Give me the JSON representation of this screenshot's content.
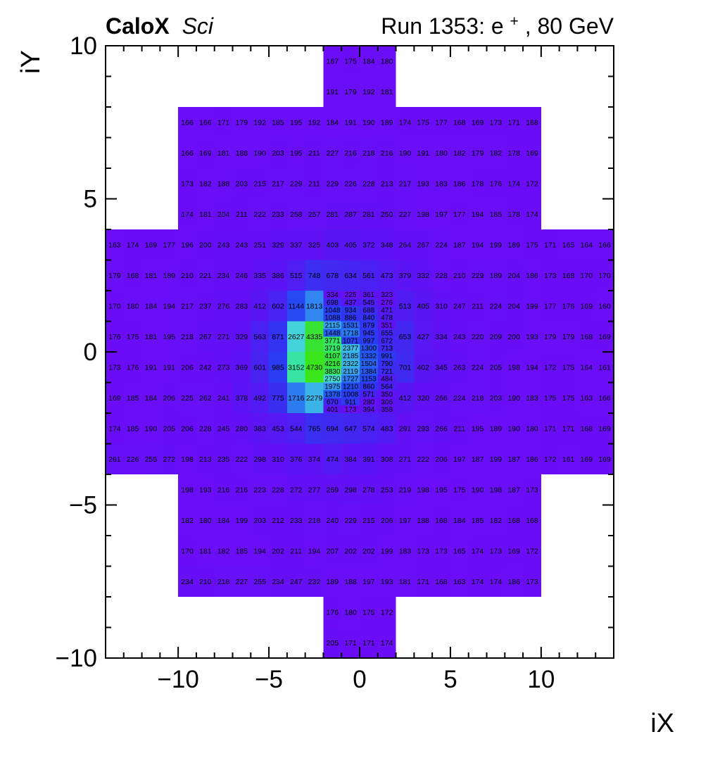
{
  "header": {
    "brand": "CaloX",
    "brand_suffix": "Sci",
    "run_prefix": "Run 1353: e",
    "run_sup": "+",
    "run_suffix": ", 80 GeV"
  },
  "chart_data": {
    "type": "heatmap",
    "title": "CaloX Sci",
    "subtitle": "Run 1353: e+, 80 GeV",
    "xlabel": "iX",
    "ylabel": "iY",
    "xlim": [
      -14,
      14
    ],
    "ylim": [
      -10,
      10
    ],
    "xticks": [
      -10,
      -5,
      0,
      5,
      10
    ],
    "yticks": [
      -10,
      -5,
      0,
      5,
      10
    ],
    "minor_tick_step": 1,
    "grid": false,
    "legend": "none",
    "cell_text_color": "#000000",
    "palette": [
      [
        160,
        "#6B0DF6"
      ],
      [
        350,
        "#5F12F4"
      ],
      [
        450,
        "#5618F3"
      ],
      [
        550,
        "#4C1FF2"
      ],
      [
        650,
        "#4426F1"
      ],
      [
        800,
        "#3730F0"
      ],
      [
        1000,
        "#2A3CF2"
      ],
      [
        1200,
        "#234CF2"
      ],
      [
        1500,
        "#2663F0"
      ],
      [
        1800,
        "#3084F0"
      ],
      [
        2100,
        "#37A2EC"
      ],
      [
        2400,
        "#3CBEE4"
      ],
      [
        2700,
        "#46D8D8"
      ],
      [
        3000,
        "#3AE2B4"
      ],
      [
        3300,
        "#34E68E"
      ],
      [
        3700,
        "#36E668"
      ],
      [
        4100,
        "#35DF40"
      ],
      [
        4730,
        "#3AE61A"
      ]
    ],
    "coarse_rows": [
      {
        "y": 9.5,
        "x0": -2,
        "v": [
          167,
          175,
          184,
          180
        ]
      },
      {
        "y": 8.5,
        "x0": -2,
        "v": [
          191,
          179,
          192,
          181
        ]
      },
      {
        "y": 7.5,
        "x0": -10,
        "v": [
          166,
          166,
          171,
          179,
          192,
          185,
          195,
          192,
          184,
          191,
          190,
          189,
          174,
          175,
          177,
          168,
          169,
          173,
          171,
          168
        ]
      },
      {
        "y": 6.5,
        "x0": -10,
        "v": [
          166,
          169,
          181,
          188,
          190,
          203,
          195,
          211,
          227,
          216,
          218,
          216,
          190,
          191,
          180,
          182,
          179,
          182,
          178,
          169
        ]
      },
      {
        "y": 5.5,
        "x0": -10,
        "v": [
          173,
          182,
          188,
          203,
          215,
          217,
          229,
          211,
          229,
          226,
          228,
          213,
          217,
          193,
          183,
          186,
          178,
          176,
          174,
          172
        ]
      },
      {
        "y": 4.5,
        "x0": -10,
        "v": [
          174,
          181,
          204,
          211,
          222,
          233,
          258,
          257,
          281,
          287,
          281,
          250,
          227,
          198,
          197,
          177,
          194,
          185,
          178,
          174
        ]
      },
      {
        "y": 3.5,
        "x0": -14,
        "v": [
          163,
          174,
          169,
          177,
          196,
          200,
          243,
          243,
          251,
          329,
          337,
          325,
          403,
          405,
          372,
          348,
          264,
          267,
          224,
          187,
          194,
          199,
          189,
          175,
          171,
          165,
          164,
          166
        ]
      },
      {
        "y": 2.5,
        "x0": -14,
        "v": [
          179,
          168,
          181,
          189,
          210,
          221,
          234,
          246,
          335,
          386,
          515,
          748,
          678,
          634,
          561,
          473,
          379,
          332,
          228,
          210,
          229,
          189,
          204,
          186,
          173,
          168,
          170,
          170
        ]
      },
      {
        "y": 1.5,
        "x0": -14,
        "v": [
          170,
          180,
          184,
          194,
          217,
          237,
          276,
          283,
          412,
          602,
          1144,
          1813
        ]
      },
      {
        "y": 1.5,
        "x0": 2,
        "v": [
          513,
          405,
          310,
          247,
          211,
          224,
          204,
          199,
          177,
          176,
          169,
          160
        ]
      },
      {
        "y": 0.5,
        "x0": -14,
        "v": [
          176,
          175,
          181,
          195,
          218,
          267,
          271,
          329,
          563,
          871,
          2627,
          4335
        ]
      },
      {
        "y": 0.5,
        "x0": 2,
        "v": [
          653,
          427,
          334,
          243,
          220,
          209,
          200,
          193,
          179,
          179,
          168,
          169
        ]
      },
      {
        "y": -0.5,
        "x0": -14,
        "v": [
          173,
          176,
          191,
          191,
          206,
          242,
          273,
          369,
          601,
          985,
          3152,
          4730
        ]
      },
      {
        "y": -0.5,
        "x0": 2,
        "v": [
          701,
          402,
          345,
          263,
          224,
          205,
          198,
          194,
          172,
          175,
          164,
          161
        ]
      },
      {
        "y": -1.5,
        "x0": -14,
        "v": [
          169,
          185,
          184,
          206,
          225,
          262,
          241,
          378,
          492,
          775,
          1716,
          2279
        ]
      },
      {
        "y": -1.5,
        "x0": 2,
        "v": [
          412,
          320,
          266,
          224,
          218,
          203,
          190,
          183,
          175,
          175,
          163,
          166
        ]
      },
      {
        "y": -2.5,
        "x0": -14,
        "v": [
          174,
          185,
          190,
          205,
          206,
          228,
          245,
          280,
          383,
          453,
          544,
          765,
          694,
          647,
          574,
          483,
          291,
          293,
          266,
          211,
          195,
          189,
          190,
          180,
          171,
          171,
          168,
          169
        ]
      },
      {
        "y": -3.5,
        "x0": -14,
        "v": [
          261,
          226,
          255,
          272,
          198,
          213,
          235,
          222,
          298,
          310,
          376,
          374,
          474,
          384,
          391,
          308,
          271,
          222,
          206,
          197,
          187,
          199,
          187,
          186,
          172,
          161,
          169,
          169
        ]
      },
      {
        "y": -4.5,
        "x0": -10,
        "v": [
          198,
          193,
          216,
          216,
          223,
          228,
          272,
          277,
          269,
          298,
          278,
          253,
          219,
          198,
          195,
          175,
          190,
          198,
          187,
          173
        ]
      },
      {
        "y": -5.5,
        "x0": -10,
        "v": [
          182,
          180,
          184,
          199,
          203,
          212,
          233,
          218,
          240,
          229,
          215,
          206,
          197,
          188,
          168,
          184,
          185,
          182,
          168,
          168
        ]
      },
      {
        "y": -6.5,
        "x0": -10,
        "v": [
          170,
          181,
          182,
          185,
          194,
          202,
          211,
          194,
          207,
          202,
          202,
          199,
          183,
          173,
          173,
          165,
          174,
          173,
          169,
          172
        ]
      },
      {
        "y": -7.5,
        "x0": -10,
        "v": [
          234,
          210,
          218,
          227,
          255,
          234,
          247,
          232,
          189,
          188,
          197,
          193,
          181,
          171,
          168,
          163,
          174,
          174,
          186,
          173
        ]
      },
      {
        "y": -8.5,
        "x0": -2,
        "v": [
          176,
          180,
          175,
          172
        ]
      },
      {
        "y": -9.5,
        "x0": -2,
        "v": [
          205,
          171,
          171,
          174
        ]
      }
    ],
    "fine_block": {
      "x0": -2,
      "y_top": 2,
      "cell_w": 1,
      "cell_h": 0.25,
      "rows": [
        [
          334,
          225,
          361,
          323
        ],
        [
          698,
          437,
          545,
          276
        ],
        [
          1048,
          934,
          688,
          471
        ],
        [
          1088,
          886,
          840,
          478
        ],
        [
          2115,
          1531,
          879,
          351
        ],
        [
          1448,
          1718,
          945,
          655
        ],
        [
          3771,
          1071,
          997,
          672
        ],
        [
          3719,
          2377,
          1300,
          713
        ],
        [
          4107,
          2185,
          1332,
          991
        ],
        [
          4216,
          2322,
          1504,
          790
        ],
        [
          3830,
          2119,
          1384,
          721
        ],
        [
          2750,
          1727,
          1153,
          484
        ],
        [
          1975,
          1210,
          860,
          564
        ],
        [
          1378,
          1008,
          571,
          350
        ],
        [
          670,
          911,
          280,
          306
        ],
        [
          401,
          173,
          394,
          358
        ]
      ]
    }
  }
}
